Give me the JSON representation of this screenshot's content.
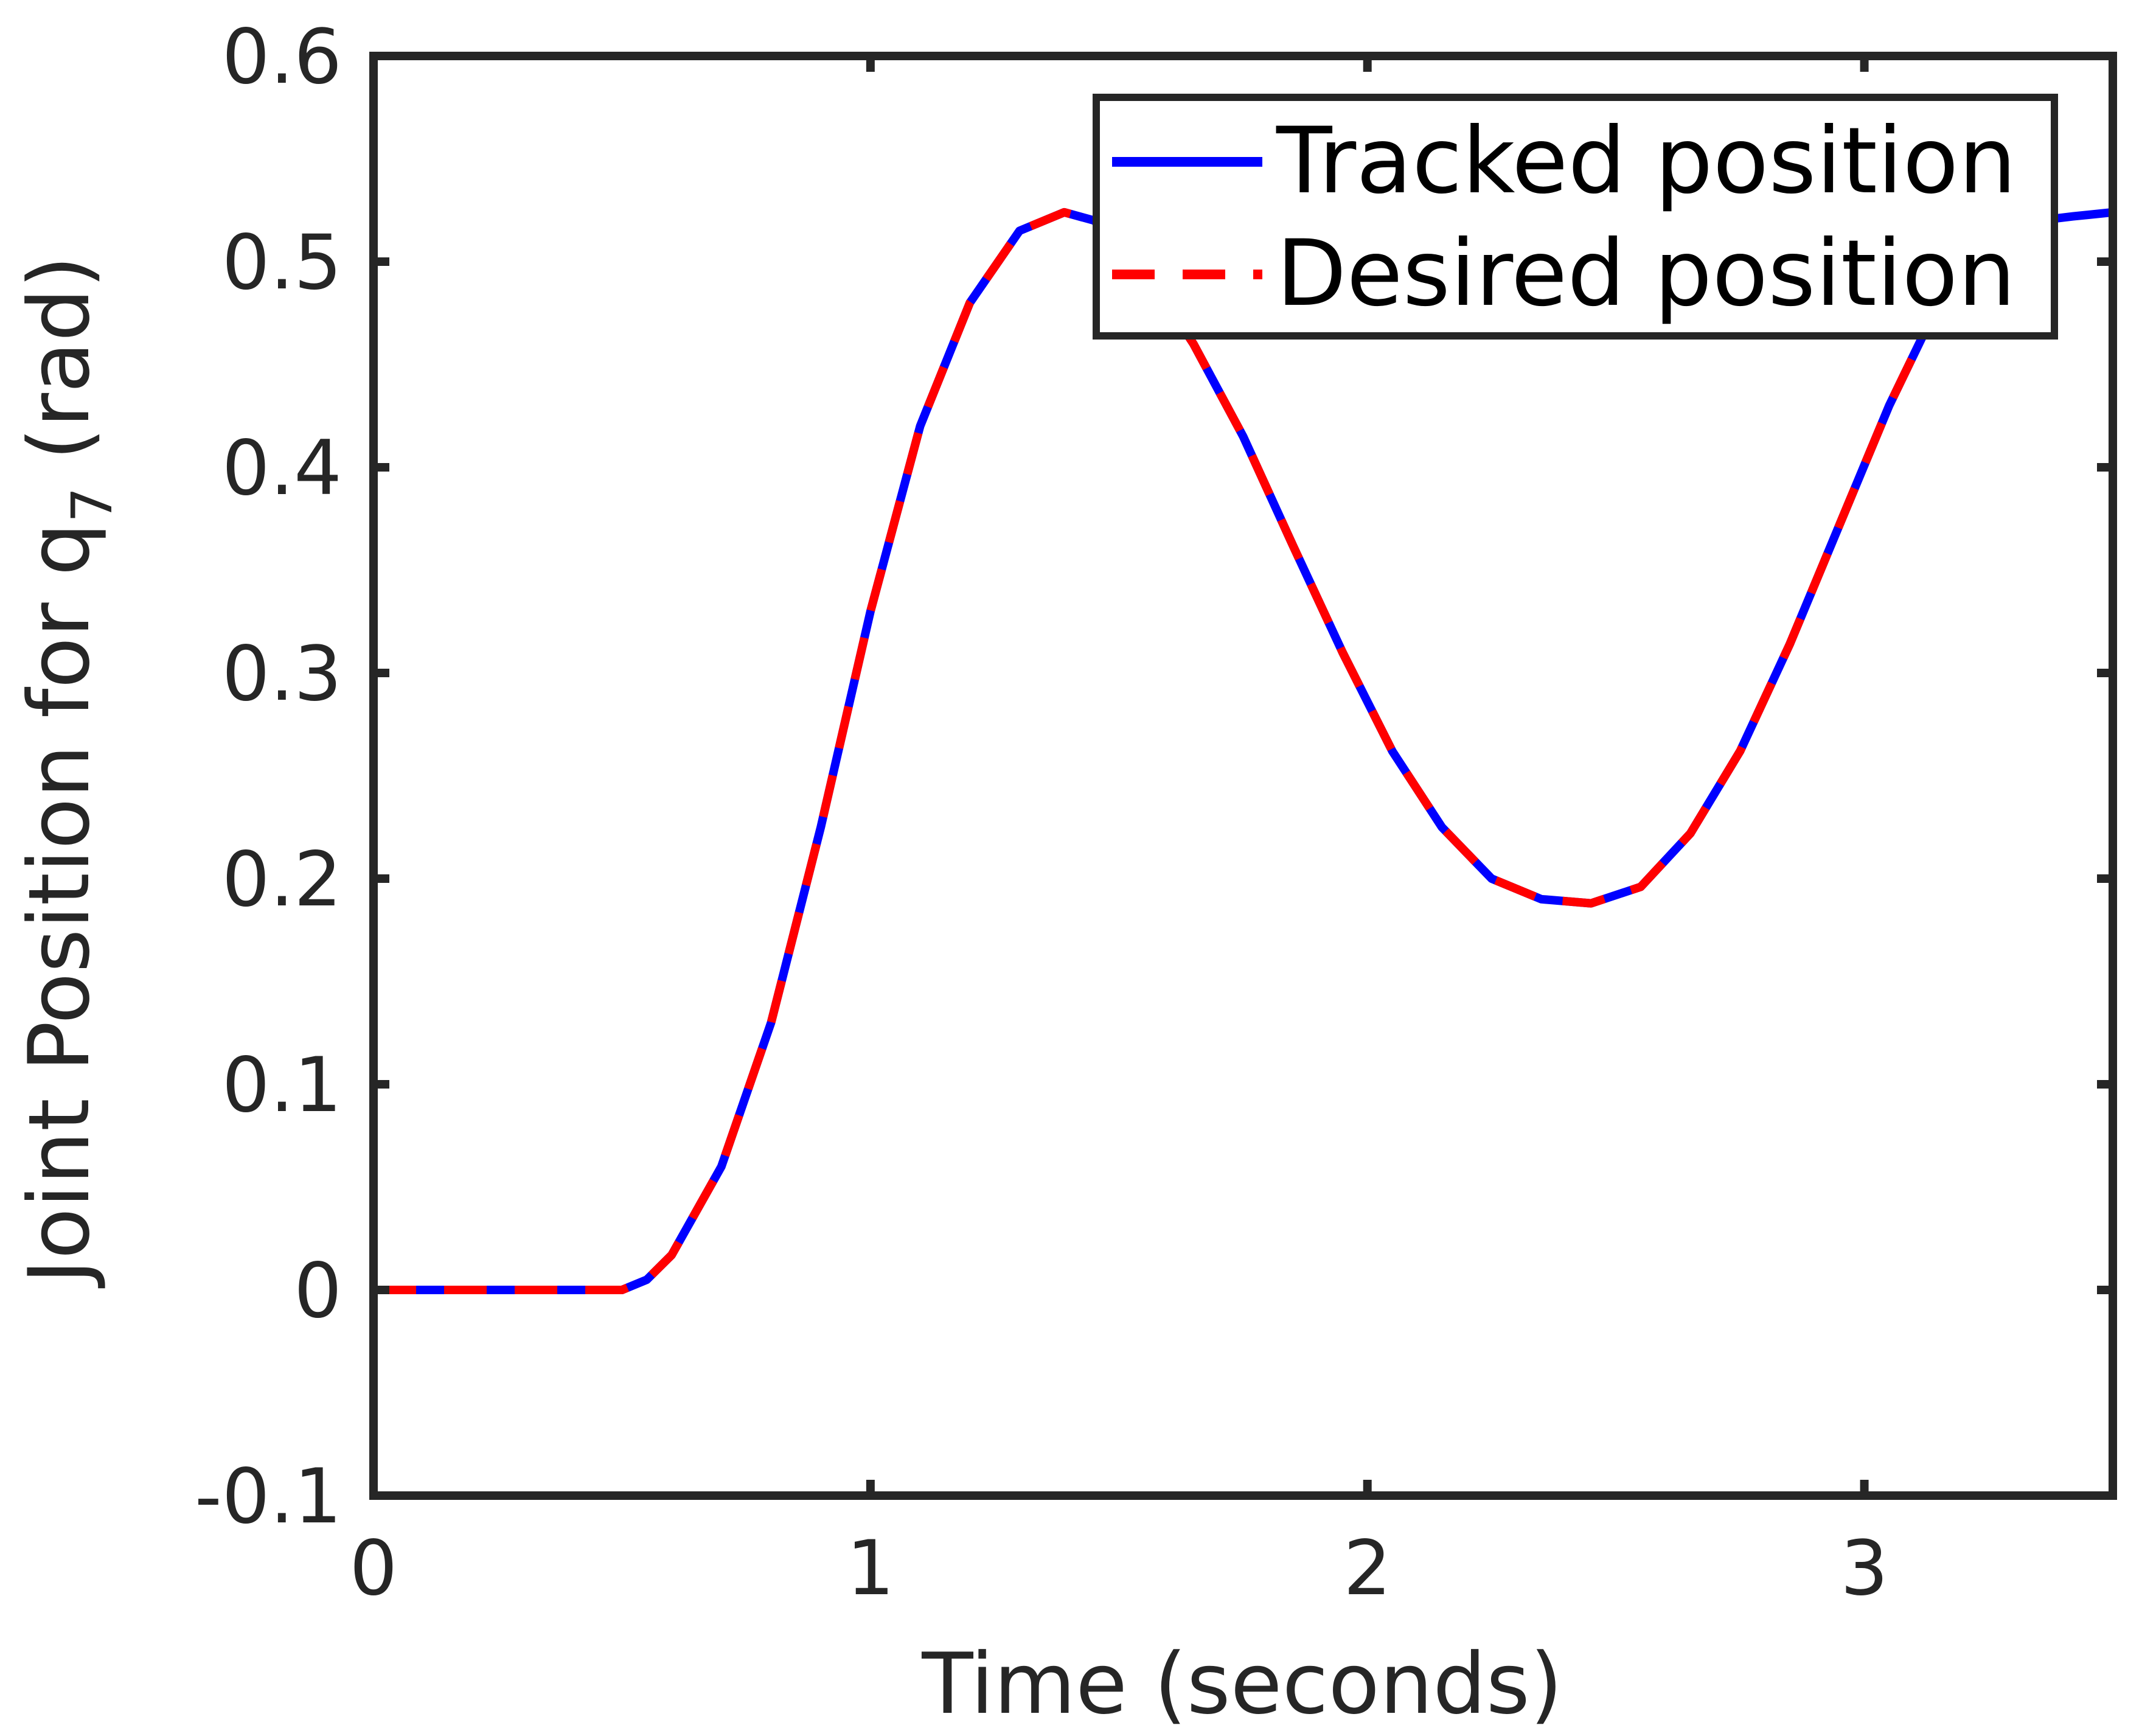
{
  "chart_data": {
    "type": "line",
    "xlabel": "Time (seconds)",
    "ylabel": {
      "main": "Joint Position for q",
      "subscript": "7",
      "unit": "(rad)"
    },
    "xlim": [
      0,
      3.5
    ],
    "ylim": [
      -0.1,
      0.6
    ],
    "x_ticks": [
      "0",
      "1",
      "2",
      "3"
    ],
    "x_tick_values": [
      0,
      1,
      2,
      3
    ],
    "y_ticks": [
      "-0.1",
      "0",
      "0.1",
      "0.2",
      "0.3",
      "0.4",
      "0.5",
      "0.6"
    ],
    "y_tick_values": [
      -0.1,
      0,
      0.1,
      0.2,
      0.3,
      0.4,
      0.5,
      0.6
    ],
    "grid": false,
    "legend_placement": "top-right",
    "series": [
      {
        "name": "Tracked position",
        "color": "#0000ff",
        "line_style": "solid",
        "x": [
          0,
          0.25,
          0.5,
          0.55,
          0.6,
          0.7,
          0.8,
          0.9,
          1.0,
          1.1,
          1.2,
          1.3,
          1.39,
          1.45,
          1.55,
          1.65,
          1.75,
          1.85,
          1.95,
          2.05,
          2.15,
          2.25,
          2.35,
          2.45,
          2.55,
          2.65,
          2.75,
          2.85,
          2.95,
          3.05,
          3.15,
          3.25,
          3.35,
          3.42,
          3.5
        ],
        "y": [
          0,
          0,
          0,
          0.005,
          0.017,
          0.06,
          0.13,
          0.225,
          0.33,
          0.42,
          0.48,
          0.515,
          0.524,
          0.52,
          0.497,
          0.46,
          0.415,
          0.362,
          0.31,
          0.262,
          0.225,
          0.2,
          0.19,
          0.188,
          0.196,
          0.222,
          0.262,
          0.314,
          0.372,
          0.43,
          0.48,
          0.508,
          0.52,
          0.522,
          0.524
        ]
      },
      {
        "name": "Desired position",
        "color": "#ff0000",
        "line_style": "dashed",
        "x": [
          0,
          0.25,
          0.5,
          0.55,
          0.6,
          0.7,
          0.8,
          0.9,
          1.0,
          1.1,
          1.2,
          1.3,
          1.39,
          1.45,
          1.55,
          1.65,
          1.75,
          1.85,
          1.95,
          2.05,
          2.15,
          2.25,
          2.35,
          2.45,
          2.55,
          2.65,
          2.75,
          2.85,
          2.95,
          3.05,
          3.15,
          3.25
        ],
        "y": [
          0,
          0,
          0,
          0.005,
          0.017,
          0.06,
          0.13,
          0.225,
          0.33,
          0.42,
          0.48,
          0.515,
          0.524,
          0.52,
          0.497,
          0.46,
          0.415,
          0.362,
          0.31,
          0.262,
          0.225,
          0.2,
          0.19,
          0.188,
          0.196,
          0.222,
          0.262,
          0.314,
          0.372,
          0.43,
          0.48,
          0.508
        ]
      }
    ]
  }
}
